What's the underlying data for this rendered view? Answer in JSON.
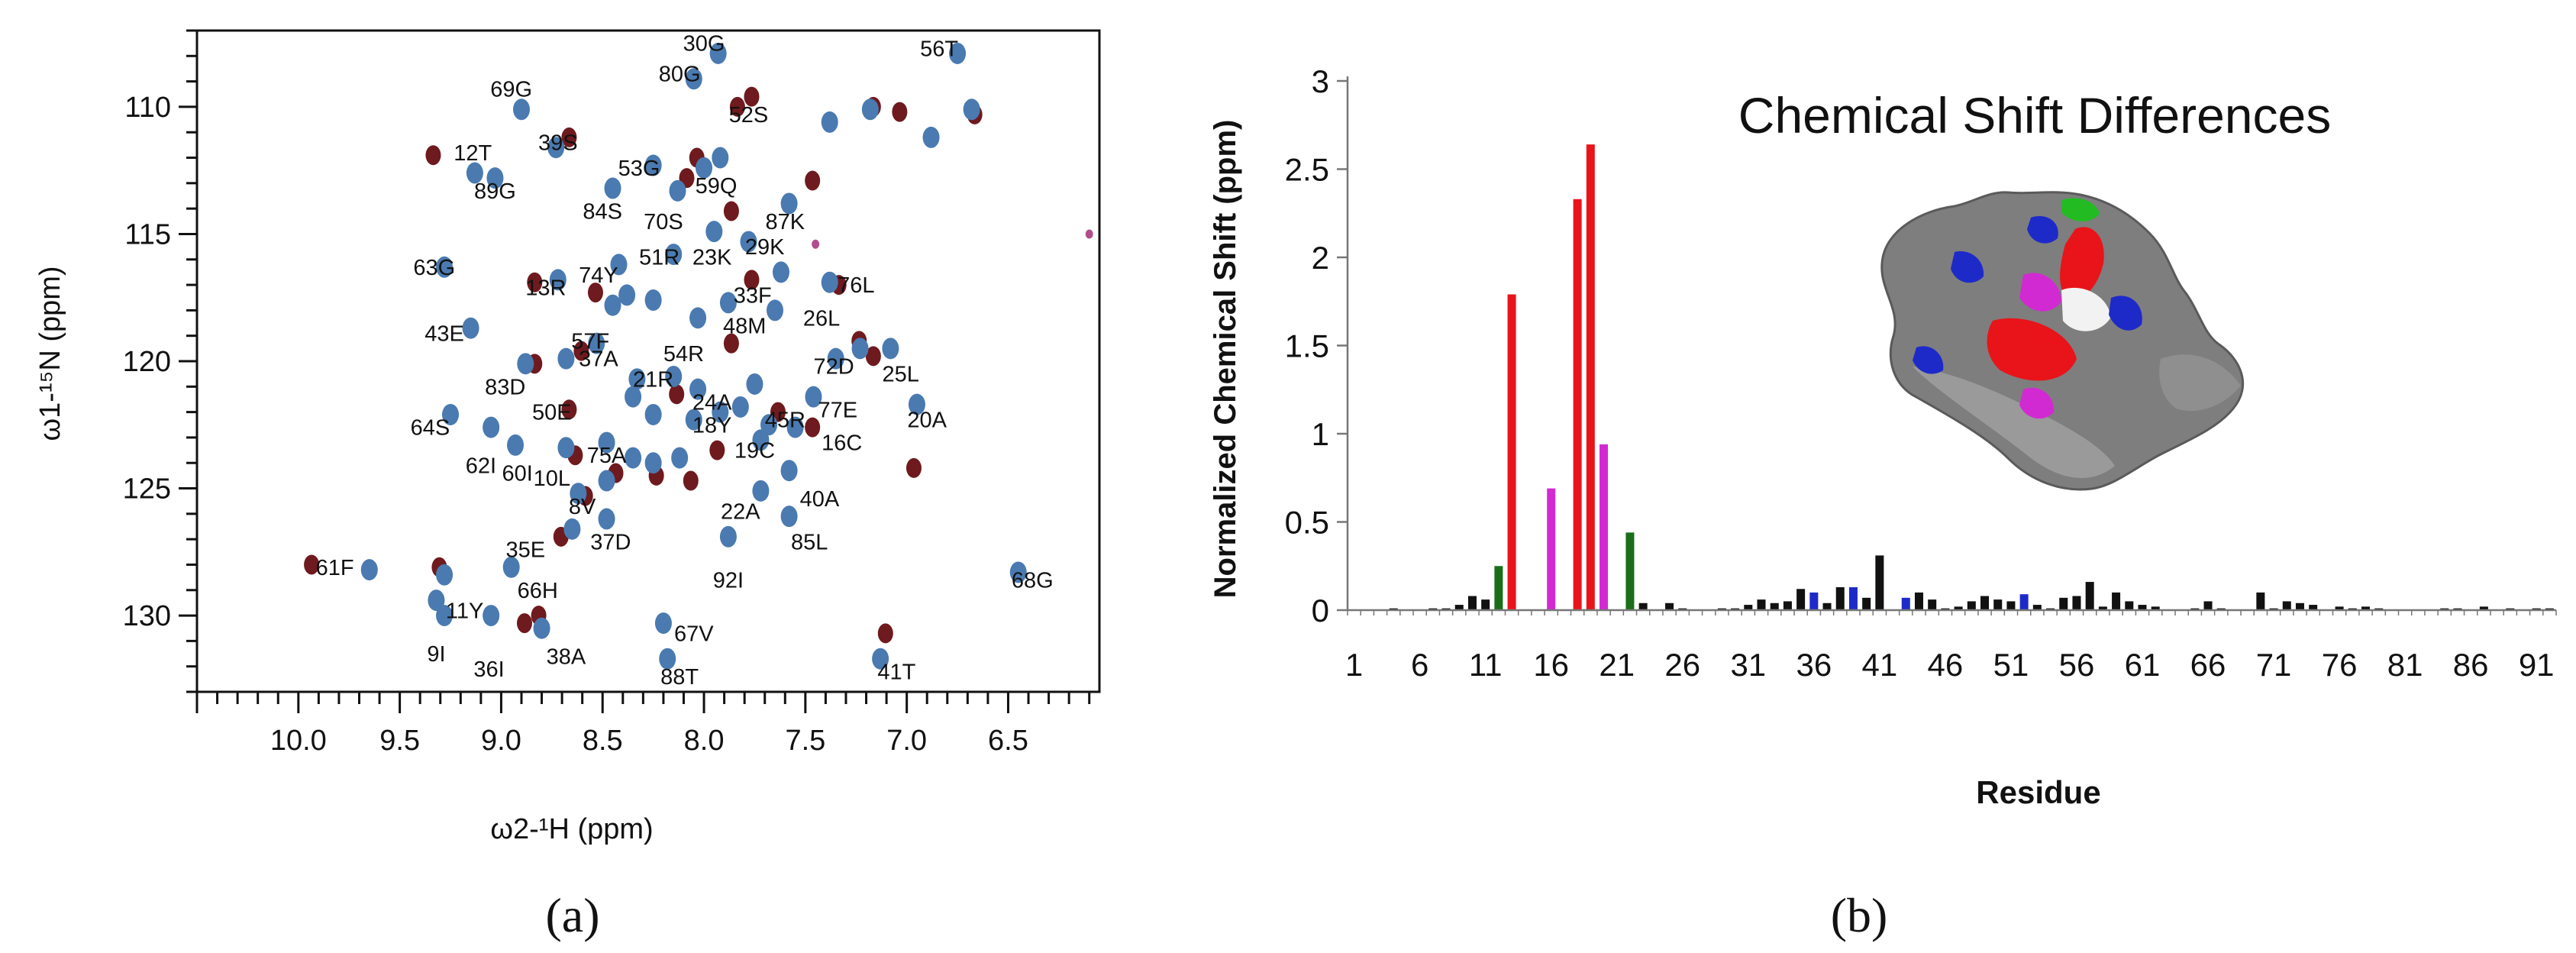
{
  "chart_data": [
    {
      "type": "scatter",
      "panel_label": "(a)",
      "xlabel": "ω2-¹H (ppm)",
      "ylabel": "ω1-¹⁵N (ppm)",
      "xlim": [
        10.5,
        6.05
      ],
      "ylim": [
        133,
        107
      ],
      "x_ticks": [
        "10.0",
        "9.5",
        "9.0",
        "8.5",
        "8.0",
        "7.5",
        "7.0",
        "6.5"
      ],
      "y_ticks": [
        "110",
        "115",
        "120",
        "125",
        "130"
      ],
      "series": [
        {
          "name": "blue",
          "color": "#4a7ab0"
        },
        {
          "name": "darkred",
          "color": "#6e1a1e"
        },
        {
          "name": "magenta",
          "color": "#b04e8a"
        }
      ],
      "blue_peaks": [
        [
          7.93,
          107.9
        ],
        [
          6.75,
          107.9
        ],
        [
          8.05,
          108.9
        ],
        [
          8.9,
          110.1
        ],
        [
          7.38,
          110.6
        ],
        [
          7.18,
          110.1
        ],
        [
          6.88,
          111.2
        ],
        [
          6.68,
          110.1
        ],
        [
          8.73,
          111.6
        ],
        [
          9.13,
          112.6
        ],
        [
          9.03,
          112.8
        ],
        [
          8.25,
          112.3
        ],
        [
          8.0,
          112.4
        ],
        [
          7.92,
          112.0
        ],
        [
          8.45,
          113.2
        ],
        [
          8.13,
          113.3
        ],
        [
          7.58,
          113.8
        ],
        [
          8.15,
          115.8
        ],
        [
          7.95,
          114.9
        ],
        [
          7.78,
          115.3
        ],
        [
          7.62,
          116.5
        ],
        [
          9.28,
          116.3
        ],
        [
          8.72,
          116.8
        ],
        [
          8.42,
          116.2
        ],
        [
          7.38,
          116.9
        ],
        [
          8.38,
          117.4
        ],
        [
          7.88,
          117.7
        ],
        [
          8.45,
          117.8
        ],
        [
          8.25,
          117.6
        ],
        [
          8.03,
          118.3
        ],
        [
          7.65,
          118.0
        ],
        [
          9.15,
          118.7
        ],
        [
          8.53,
          119.3
        ],
        [
          8.68,
          119.9
        ],
        [
          8.33,
          120.7
        ],
        [
          8.15,
          120.6
        ],
        [
          7.75,
          120.9
        ],
        [
          7.35,
          119.9
        ],
        [
          7.23,
          119.5
        ],
        [
          7.08,
          119.5
        ],
        [
          8.88,
          120.1
        ],
        [
          8.03,
          121.1
        ],
        [
          8.35,
          121.4
        ],
        [
          8.25,
          122.1
        ],
        [
          8.05,
          122.3
        ],
        [
          7.92,
          122.0
        ],
        [
          7.82,
          121.8
        ],
        [
          7.68,
          122.5
        ],
        [
          7.55,
          122.6
        ],
        [
          7.46,
          121.4
        ],
        [
          6.95,
          121.7
        ],
        [
          9.25,
          122.1
        ],
        [
          9.05,
          122.6
        ],
        [
          8.93,
          123.3
        ],
        [
          8.68,
          123.4
        ],
        [
          8.48,
          123.2
        ],
        [
          8.35,
          123.8
        ],
        [
          8.25,
          124.0
        ],
        [
          8.12,
          123.8
        ],
        [
          7.72,
          123.1
        ],
        [
          7.58,
          124.3
        ],
        [
          8.48,
          124.7
        ],
        [
          8.62,
          125.2
        ],
        [
          7.72,
          125.1
        ],
        [
          8.48,
          126.2
        ],
        [
          8.65,
          126.6
        ],
        [
          7.88,
          126.9
        ],
        [
          7.58,
          126.1
        ],
        [
          9.65,
          128.2
        ],
        [
          9.28,
          128.4
        ],
        [
          8.95,
          128.1
        ],
        [
          9.32,
          129.4
        ],
        [
          9.28,
          130.0
        ],
        [
          9.05,
          130.0
        ],
        [
          8.8,
          130.5
        ],
        [
          8.2,
          130.3
        ],
        [
          8.18,
          131.7
        ],
        [
          7.13,
          131.7
        ],
        [
          6.45,
          128.3
        ]
      ],
      "red_peaks": [
        [
          9.35,
          111.9
        ],
        [
          8.68,
          111.2
        ],
        [
          7.78,
          109.6
        ],
        [
          7.85,
          110.0
        ],
        [
          7.48,
          112.9
        ],
        [
          7.18,
          110.0
        ],
        [
          7.05,
          110.2
        ],
        [
          6.68,
          110.3
        ],
        [
          8.05,
          112.0
        ],
        [
          8.1,
          112.8
        ],
        [
          7.88,
          114.1
        ],
        [
          7.78,
          116.8
        ],
        [
          7.35,
          117.0
        ],
        [
          8.85,
          116.9
        ],
        [
          8.55,
          117.3
        ],
        [
          7.88,
          119.3
        ],
        [
          7.25,
          119.2
        ],
        [
          7.18,
          119.8
        ],
        [
          8.62,
          119.6
        ],
        [
          8.85,
          120.1
        ],
        [
          8.65,
          123.7
        ],
        [
          8.45,
          124.4
        ],
        [
          8.25,
          124.5
        ],
        [
          8.08,
          124.7
        ],
        [
          7.65,
          122.0
        ],
        [
          7.48,
          122.6
        ],
        [
          6.98,
          124.2
        ],
        [
          9.95,
          128.0
        ],
        [
          9.32,
          128.1
        ],
        [
          8.9,
          130.3
        ],
        [
          8.83,
          130.0
        ],
        [
          7.12,
          130.7
        ],
        [
          8.72,
          126.9
        ],
        [
          8.6,
          125.3
        ],
        [
          8.15,
          121.3
        ],
        [
          7.95,
          123.5
        ],
        [
          8.68,
          121.9
        ]
      ],
      "magenta_peaks": [
        [
          6.1,
          115.0
        ],
        [
          7.45,
          115.4
        ]
      ],
      "peak_labels": [
        {
          "text": "30G",
          "x": 8.0,
          "y": 107.5
        },
        {
          "text": "56T",
          "x": 6.84,
          "y": 107.7
        },
        {
          "text": "80G",
          "x": 8.12,
          "y": 108.7
        },
        {
          "text": "69G",
          "x": 8.95,
          "y": 109.3
        },
        {
          "text": "52S",
          "x": 7.78,
          "y": 110.3
        },
        {
          "text": "39S",
          "x": 8.72,
          "y": 111.4
        },
        {
          "text": "12T",
          "x": 9.14,
          "y": 111.8
        },
        {
          "text": "53G",
          "x": 8.32,
          "y": 112.4
        },
        {
          "text": "89G",
          "x": 9.03,
          "y": 113.3
        },
        {
          "text": "59Q",
          "x": 7.94,
          "y": 113.1
        },
        {
          "text": "84S",
          "x": 8.5,
          "y": 114.1
        },
        {
          "text": "70S",
          "x": 8.2,
          "y": 114.5
        },
        {
          "text": "87K",
          "x": 7.6,
          "y": 114.5
        },
        {
          "text": "63G",
          "x": 9.33,
          "y": 116.3
        },
        {
          "text": "51R",
          "x": 8.22,
          "y": 115.9
        },
        {
          "text": "23K",
          "x": 7.96,
          "y": 115.9
        },
        {
          "text": "29K",
          "x": 7.7,
          "y": 115.5
        },
        {
          "text": "74Y",
          "x": 8.52,
          "y": 116.6
        },
        {
          "text": "13R",
          "x": 8.78,
          "y": 117.1
        },
        {
          "text": "76L",
          "x": 7.25,
          "y": 117.0
        },
        {
          "text": "33F",
          "x": 7.76,
          "y": 117.4
        },
        {
          "text": "26L",
          "x": 7.42,
          "y": 118.3
        },
        {
          "text": "48M",
          "x": 7.8,
          "y": 118.6
        },
        {
          "text": "57F",
          "x": 8.56,
          "y": 119.2
        },
        {
          "text": "43E",
          "x": 9.28,
          "y": 118.9
        },
        {
          "text": "37A",
          "x": 8.52,
          "y": 119.9
        },
        {
          "text": "54R",
          "x": 8.1,
          "y": 119.7
        },
        {
          "text": "72D",
          "x": 7.36,
          "y": 120.2
        },
        {
          "text": "25L",
          "x": 7.03,
          "y": 120.5
        },
        {
          "text": "21R",
          "x": 8.25,
          "y": 120.7
        },
        {
          "text": "83D",
          "x": 8.98,
          "y": 121.0
        },
        {
          "text": "24A",
          "x": 7.96,
          "y": 121.6
        },
        {
          "text": "50E",
          "x": 8.75,
          "y": 122.0
        },
        {
          "text": "45R",
          "x": 7.6,
          "y": 122.3
        },
        {
          "text": "77E",
          "x": 7.34,
          "y": 121.9
        },
        {
          "text": "18Y",
          "x": 7.96,
          "y": 122.5
        },
        {
          "text": "64S",
          "x": 9.35,
          "y": 122.6
        },
        {
          "text": "20A",
          "x": 6.9,
          "y": 122.3
        },
        {
          "text": "16C",
          "x": 7.32,
          "y": 123.2
        },
        {
          "text": "19C",
          "x": 7.75,
          "y": 123.5
        },
        {
          "text": "62I",
          "x": 9.1,
          "y": 124.1
        },
        {
          "text": "60I",
          "x": 8.92,
          "y": 124.4
        },
        {
          "text": "10L",
          "x": 8.75,
          "y": 124.6
        },
        {
          "text": "75A",
          "x": 8.48,
          "y": 123.7
        },
        {
          "text": "8V",
          "x": 8.6,
          "y": 125.7
        },
        {
          "text": "22A",
          "x": 7.82,
          "y": 125.9
        },
        {
          "text": "40A",
          "x": 7.43,
          "y": 125.4
        },
        {
          "text": "35E",
          "x": 8.88,
          "y": 127.4
        },
        {
          "text": "37D",
          "x": 8.46,
          "y": 127.1
        },
        {
          "text": "85L",
          "x": 7.48,
          "y": 127.1
        },
        {
          "text": "61F",
          "x": 9.82,
          "y": 128.1
        },
        {
          "text": "68G",
          "x": 6.38,
          "y": 128.6
        },
        {
          "text": "66H",
          "x": 8.82,
          "y": 129.0
        },
        {
          "text": "92I",
          "x": 7.88,
          "y": 128.6
        },
        {
          "text": "11Y",
          "x": 9.18,
          "y": 129.8
        },
        {
          "text": "67V",
          "x": 8.05,
          "y": 130.7
        },
        {
          "text": "9I",
          "x": 9.32,
          "y": 131.5
        },
        {
          "text": "36I",
          "x": 9.06,
          "y": 132.1
        },
        {
          "text": "38A",
          "x": 8.68,
          "y": 131.6
        },
        {
          "text": "88T",
          "x": 8.12,
          "y": 132.4
        },
        {
          "text": "41T",
          "x": 7.05,
          "y": 132.2
        }
      ]
    },
    {
      "type": "bar",
      "panel_label": "(b)",
      "title": "Chemical Shift Differences",
      "xlabel": "Residue",
      "ylabel": "Normalized Chemical Shift (ppm)",
      "ylim": [
        0,
        3
      ],
      "y_ticks": [
        "0",
        "0.5",
        "1",
        "1.5",
        "2",
        "2.5",
        "3"
      ],
      "x_ticks": [
        "1",
        "6",
        "11",
        "16",
        "21",
        "26",
        "31",
        "36",
        "41",
        "46",
        "51",
        "56",
        "61",
        "66",
        "71",
        "76",
        "81",
        "86",
        "91"
      ],
      "x_start": 1,
      "colors": {
        "k": "#111111",
        "g": "#1a6e1a",
        "r": "#e8141a",
        "m": "#d22ad2",
        "b": "#1e2ac8"
      },
      "values": [
        0,
        0,
        0,
        0.01,
        0,
        0,
        0.01,
        0.01,
        0.03,
        0.08,
        0.06,
        0.25,
        1.79,
        0,
        0,
        0.69,
        0,
        2.33,
        2.64,
        0.94,
        0,
        0.44,
        0.04,
        0,
        0.04,
        0.01,
        0,
        0,
        0.01,
        0.01,
        0.03,
        0.06,
        0.04,
        0.05,
        0.12,
        0.1,
        0.04,
        0.13,
        0.13,
        0.07,
        0.31,
        0,
        0.07,
        0.1,
        0.06,
        0.01,
        0.02,
        0.05,
        0.08,
        0.06,
        0.05,
        0.09,
        0.03,
        0.01,
        0.07,
        0.08,
        0.16,
        0.02,
        0.1,
        0.05,
        0.03,
        0.02,
        0,
        0,
        0.01,
        0.05,
        0.01,
        0,
        0,
        0.1,
        0.01,
        0.05,
        0.04,
        0.03,
        0,
        0.02,
        0.01,
        0.02,
        0.01,
        0,
        0,
        0,
        0,
        0.01,
        0.01,
        0,
        0.02,
        0,
        0.01,
        0,
        0.01,
        0.01
      ],
      "bar_colors": "kkkkkkkkkkkgrkkmkrrmkgkkkkkkkkkkkkkbkkbkkkbkkkkkkkkbkkkkkkkkkkkkkkkkkkkkkkkkkkkkkkkkkkkkkkkkkk",
      "inset": {
        "description_colors": [
          "#7a7a7a",
          "#1e2ac8",
          "#e8141a",
          "#d22ad2",
          "#22bb22",
          "#f2f2f2"
        ]
      }
    }
  ]
}
